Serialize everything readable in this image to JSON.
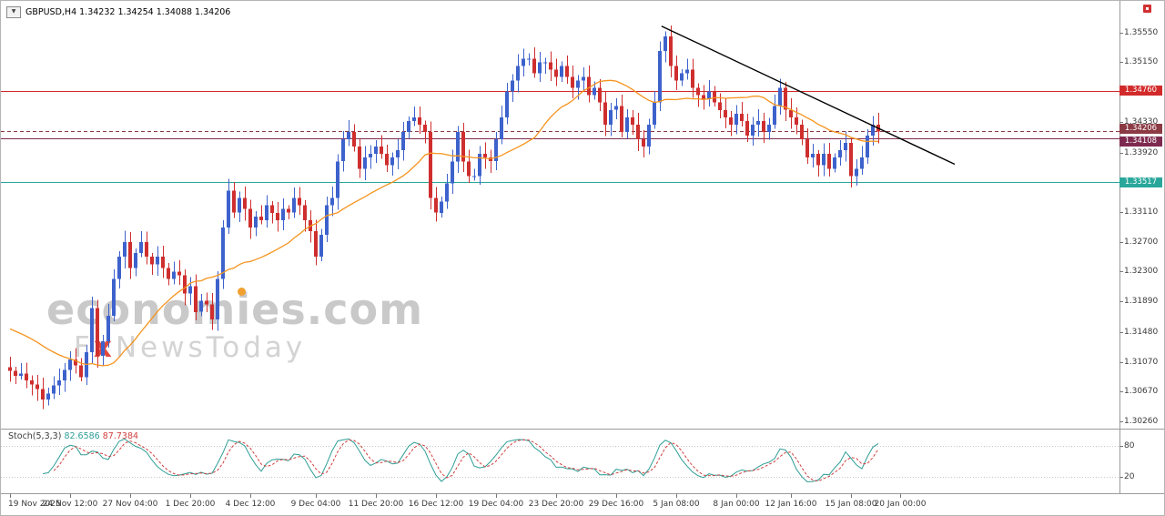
{
  "header": {
    "dropdown_icon": "▼",
    "symbol_text": "GBPUSD,H4 1.34232 1.34254 1.34088 1.34206"
  },
  "watermark": {
    "brand_part1": "econom",
    "brand_i": "i",
    "brand_part2": "es.com",
    "sub_f": "F",
    "sub_x": "x",
    "sub_rest": "NewsToday"
  },
  "indicator": {
    "label": "Stoch(5,3,3)",
    "k": "82.6586",
    "d": "87.7384"
  },
  "colors": {
    "bull": "#3d62cc",
    "bear": "#cf2e2e",
    "ma": "#f5941e",
    "trendline": "#000000",
    "stoch_k": "#2e9e96",
    "stoch_d": "#d04040",
    "axis_line": "#9a9a9a",
    "tick": "#777777"
  },
  "chart_data": {
    "type": "candlestick",
    "title": "GBPUSD H4",
    "y_range": {
      "price_top": 1.3555,
      "y_top": 35,
      "price_bottom": 1.3026,
      "y_bottom": 462
    },
    "x_layout": {
      "x0": 10,
      "dx": 6,
      "body_width": 4
    },
    "y_axis_ticks": [
      1.3555,
      1.3515,
      1.3474,
      1.3433,
      1.3392,
      1.3351,
      1.3311,
      1.327,
      1.323,
      1.3189,
      1.3148,
      1.3107,
      1.3067,
      1.3026
    ],
    "first_open": 1.31,
    "ma_period": 20,
    "ma_seed": 1.3155,
    "closes": [
      1.3095,
      1.3088,
      1.3091,
      1.3082,
      1.3076,
      1.307,
      1.3056,
      1.3064,
      1.3075,
      1.3082,
      1.3096,
      1.311,
      1.3102,
      1.3086,
      1.312,
      1.318,
      1.3115,
      1.3135,
      1.317,
      1.322,
      1.325,
      1.327,
      1.3235,
      1.3255,
      1.327,
      1.325,
      1.324,
      1.325,
      1.3235,
      1.322,
      1.323,
      1.3225,
      1.32,
      1.321,
      1.3175,
      1.319,
      1.3185,
      1.3165,
      1.322,
      1.329,
      1.334,
      1.331,
      1.333,
      1.3315,
      1.329,
      1.3305,
      1.33,
      1.332,
      1.331,
      1.33,
      1.3315,
      1.331,
      1.333,
      1.332,
      1.33,
      1.3285,
      1.325,
      1.328,
      1.332,
      1.333,
      1.338,
      1.341,
      1.342,
      1.34,
      1.337,
      1.3385,
      1.339,
      1.34,
      1.339,
      1.3375,
      1.3385,
      1.3395,
      1.342,
      1.3435,
      1.344,
      1.343,
      1.342,
      1.333,
      1.331,
      1.3325,
      1.335,
      1.338,
      1.342,
      1.338,
      1.336,
      1.336,
      1.339,
      1.3385,
      1.338,
      1.341,
      1.344,
      1.3475,
      1.349,
      1.351,
      1.352,
      1.352,
      1.35,
      1.3515,
      1.3515,
      1.3505,
      1.3495,
      1.351,
      1.3495,
      1.348,
      1.349,
      1.3495,
      1.347,
      1.348,
      1.346,
      1.343,
      1.345,
      1.3455,
      1.342,
      1.344,
      1.343,
      1.341,
      1.34,
      1.343,
      1.346,
      1.353,
      1.355,
      1.351,
      1.349,
      1.35,
      1.3505,
      1.348,
      1.347,
      1.3465,
      1.3475,
      1.346,
      1.345,
      1.344,
      1.343,
      1.3445,
      1.3435,
      1.3415,
      1.343,
      1.3435,
      1.342,
      1.343,
      1.3455,
      1.348,
      1.345,
      1.344,
      1.343,
      1.341,
      1.3385,
      1.339,
      1.3375,
      1.339,
      1.337,
      1.3385,
      1.3395,
      1.3405,
      1.336,
      1.337,
      1.3385,
      1.3415,
      1.343,
      1.34206
    ],
    "hlines": [
      {
        "price": 1.3476,
        "label": "1.34760",
        "color": "#d22a2a",
        "dy": 0
      },
      {
        "price": 1.34108,
        "label": "1.34108",
        "color": "#7e2a4f",
        "dy": 3
      },
      {
        "price": 1.33517,
        "label": "1.33517",
        "color": "#2aa79b",
        "dy": 0
      }
    ],
    "current_price": {
      "price": 1.34206,
      "label": "1.34206",
      "color": "#8b3a44",
      "dy": -3
    },
    "trendline": {
      "i1": 119.3,
      "p1": 1.3564,
      "i2": 173,
      "p2": 1.3376
    },
    "time_labels": [
      {
        "text": "19 Nov 2025",
        "i": 0,
        "align": "left"
      },
      {
        "text": "24 Nov 12:00",
        "i": 11
      },
      {
        "text": "27 Nov 04:00",
        "i": 22
      },
      {
        "text": "1 Dec 20:00",
        "i": 33
      },
      {
        "text": "4 Dec 12:00",
        "i": 44
      },
      {
        "text": "9 Dec 04:00",
        "i": 56
      },
      {
        "text": "11 Dec 20:00",
        "i": 67
      },
      {
        "text": "16 Dec 12:00",
        "i": 78
      },
      {
        "text": "19 Dec 04:00",
        "i": 89
      },
      {
        "text": "23 Dec 20:00",
        "i": 100
      },
      {
        "text": "29 Dec 16:00",
        "i": 111
      },
      {
        "text": "5 Jan 08:00",
        "i": 122
      },
      {
        "text": "8 Jan 00:00",
        "i": 133
      },
      {
        "text": "12 Jan 16:00",
        "i": 143
      },
      {
        "text": "15 Jan 08:00",
        "i": 154
      },
      {
        "text": "20 Jan 00:00",
        "i": 163
      }
    ],
    "stoch": {
      "k_period": 5,
      "slowing": 3,
      "d_period": 3,
      "levels": [
        80,
        20
      ],
      "pane": {
        "y100": 477,
        "y0": 535
      }
    }
  }
}
